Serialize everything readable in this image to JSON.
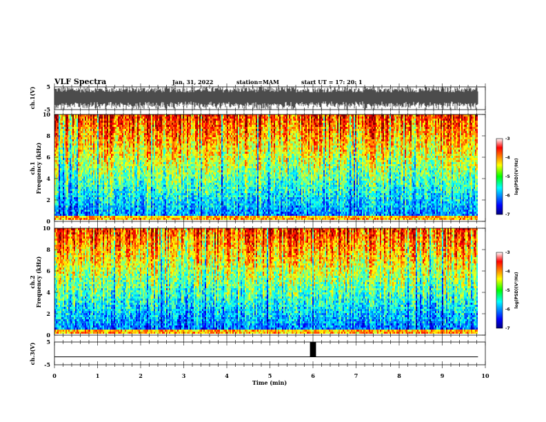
{
  "header": {
    "title": "VLF Spectra",
    "date": "Jan. 31, 2022",
    "station": "station=MAM",
    "start": "start UT =   17: 20: 1"
  },
  "chart_data": [
    {
      "type": "line",
      "name": "ch1-waveform",
      "ylabel": "ch.1(V)",
      "ylim": [
        -5,
        5
      ],
      "y_ticks": [
        "5",
        "-5"
      ],
      "xlim": [
        0,
        9.83
      ],
      "description_free": true
    },
    {
      "type": "heatmap",
      "name": "ch1-spectrogram",
      "ylabel_line1": "ch.1",
      "ylabel_line2": "Frequency (kHz)",
      "ylim": [
        0,
        10
      ],
      "y_ticks": [
        "0",
        "2",
        "4",
        "6",
        "8",
        "10"
      ],
      "xlim": [
        0,
        9.83
      ],
      "colorbar": {
        "label": "log(PSD)(V²/Hz)",
        "range": [
          -7,
          -3
        ],
        "ticks": [
          "-3",
          "-4",
          "-5",
          "-6",
          "-7"
        ]
      }
    },
    {
      "type": "heatmap",
      "name": "ch2-spectrogram",
      "ylabel_line1": "ch.2",
      "ylabel_line2": "Frequency (kHz)",
      "ylim": [
        0,
        10
      ],
      "y_ticks": [
        "0",
        "2",
        "4",
        "6",
        "8",
        "10"
      ],
      "xlim": [
        0,
        9.83
      ],
      "colorbar": {
        "label": "log(PSD)(V²/Hz)",
        "range": [
          -7,
          -3
        ],
        "ticks": [
          "-3",
          "-4",
          "-5",
          "-6",
          "-7"
        ]
      }
    },
    {
      "type": "line",
      "name": "ch3-waveform",
      "ylabel": "ch.3(V)",
      "ylim": [
        -5,
        5
      ],
      "y_ticks": [
        "5",
        "-5"
      ],
      "pulse": {
        "x_start": 5.93,
        "x_end": 6.07,
        "level": 5
      },
      "baseline": -1.5,
      "xlim": [
        0,
        9.83
      ]
    }
  ],
  "x_axis": {
    "label": "Time (min)",
    "range": [
      0,
      10
    ],
    "ticks": [
      "0",
      "1",
      "2",
      "3",
      "4",
      "5",
      "6",
      "7",
      "8",
      "9",
      "10"
    ]
  }
}
